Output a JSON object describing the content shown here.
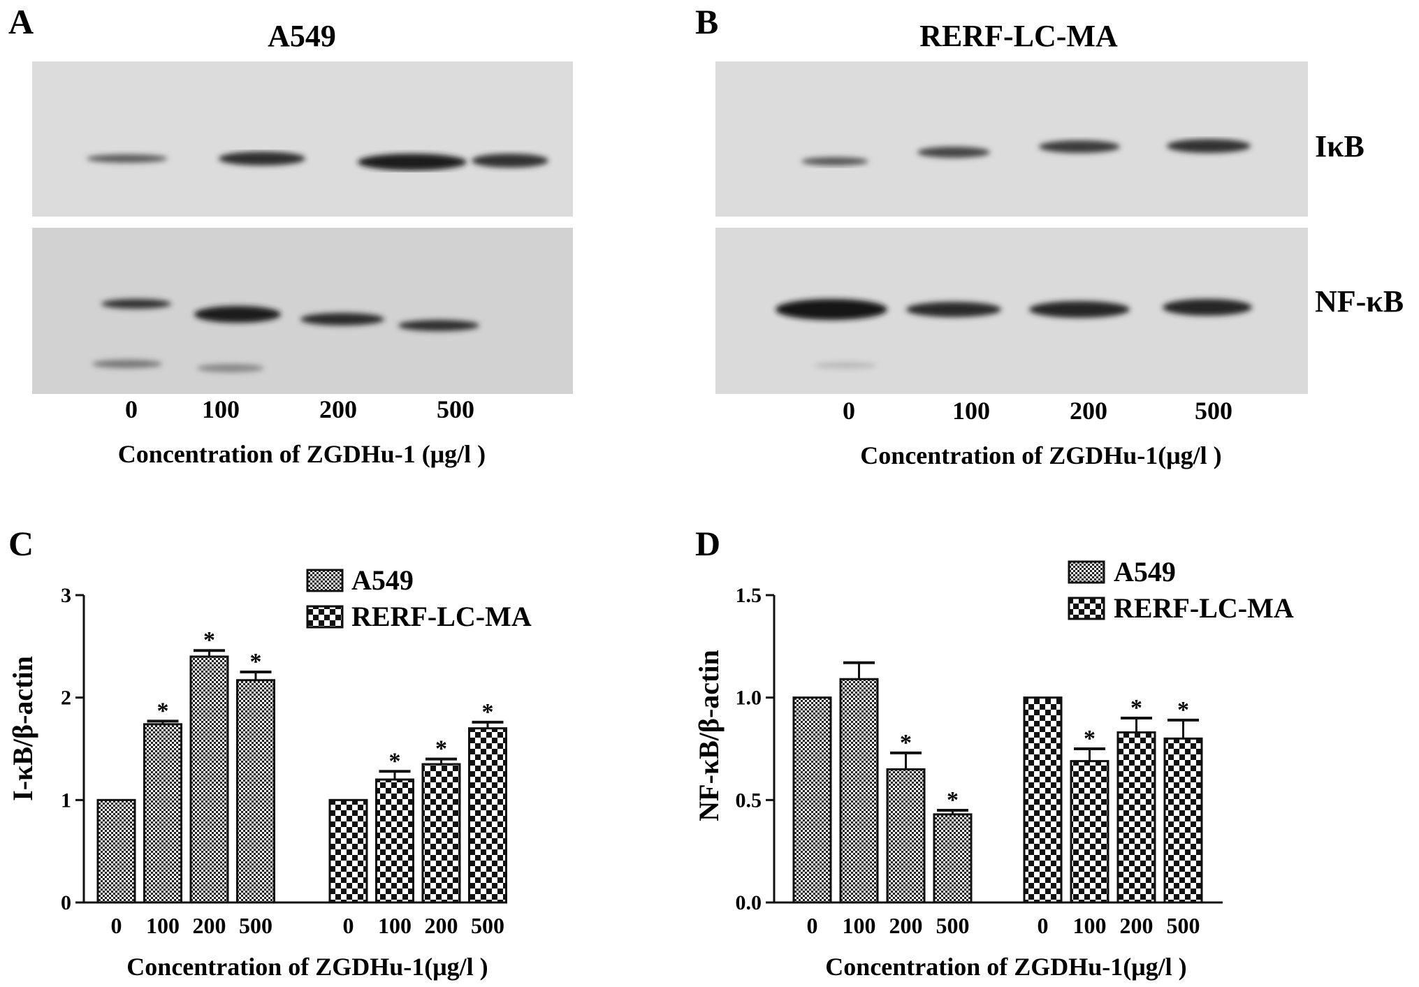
{
  "panels": {
    "A": {
      "letter": "A",
      "title": "A549",
      "lanes": [
        "0",
        "100",
        "200",
        "500"
      ],
      "xlabel": "Concentration of ZGDHu-1 (μg/l )"
    },
    "B": {
      "letter": "B",
      "title": "RERF-LC-MA",
      "lanes": [
        "0",
        "100",
        "200",
        "500"
      ],
      "xlabel": "Concentration of ZGDHu-1(μg/l )",
      "proteins": [
        "IκB",
        "NF-κB"
      ]
    }
  },
  "chart_data": [
    {
      "panel": "C",
      "type": "bar",
      "ylabel": "I-κB/β-actin",
      "xlabel": "Concentration of ZGDHu-1(μg/l )",
      "categories": [
        "0",
        "100",
        "200",
        "500"
      ],
      "ylim": [
        0,
        3
      ],
      "yticks": [
        "0",
        "1",
        "2",
        "3"
      ],
      "ytick_values": [
        0,
        1,
        2,
        3
      ],
      "series": [
        {
          "name": "A549",
          "values": [
            1.0,
            1.74,
            2.4,
            2.17
          ],
          "errors": [
            0,
            0.03,
            0.06,
            0.08
          ],
          "significant": [
            false,
            true,
            true,
            true
          ]
        },
        {
          "name": "RERF-LC-MA",
          "values": [
            1.0,
            1.2,
            1.35,
            1.7
          ],
          "errors": [
            0,
            0.08,
            0.05,
            0.06
          ],
          "significant": [
            false,
            true,
            true,
            true
          ]
        }
      ]
    },
    {
      "panel": "D",
      "type": "bar",
      "ylabel": "NF-κB/β-actin",
      "xlabel": "Concentration of ZGDHu-1(μg/l )",
      "categories": [
        "0",
        "100",
        "200",
        "500"
      ],
      "ylim": [
        0,
        1.5
      ],
      "yticks": [
        "0.0",
        "0.5",
        "1.0",
        "1.5"
      ],
      "ytick_values": [
        0,
        0.5,
        1.0,
        1.5
      ],
      "series": [
        {
          "name": "A549",
          "values": [
            1.0,
            1.09,
            0.65,
            0.43
          ],
          "errors": [
            0,
            0.08,
            0.08,
            0.02
          ],
          "significant": [
            false,
            false,
            true,
            true
          ]
        },
        {
          "name": "RERF-LC-MA",
          "values": [
            1.0,
            0.69,
            0.83,
            0.8
          ],
          "errors": [
            0,
            0.06,
            0.07,
            0.09
          ],
          "significant": [
            false,
            true,
            true,
            true
          ]
        }
      ]
    }
  ],
  "significance_mark": "*",
  "colors": {
    "text": "#111111",
    "blot_light": "#dadada",
    "band": "#1e1e1e"
  }
}
